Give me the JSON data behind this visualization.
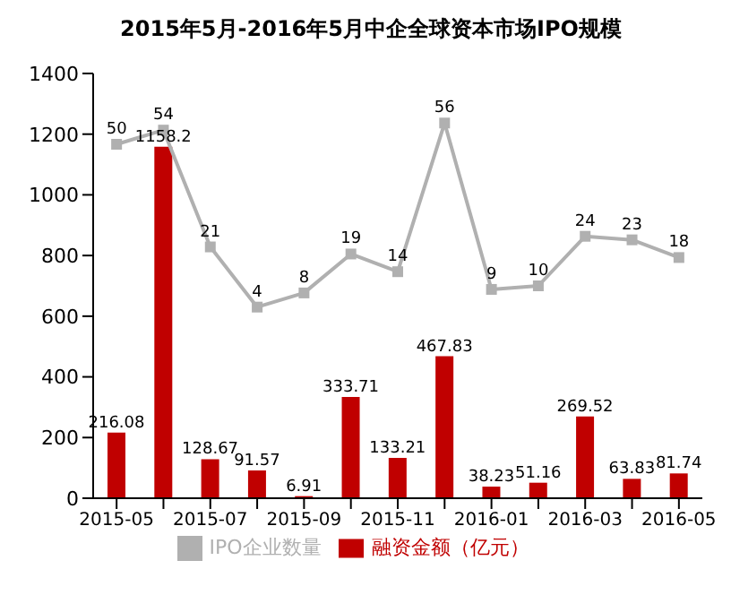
{
  "chart_data": {
    "type": "bar",
    "title": "2015年5月-2016年5月中企全球资本市场IPO规模",
    "categories": [
      "2015-05",
      null,
      "2015-07",
      null,
      "2015-09",
      null,
      "2015-11",
      null,
      "2016-01",
      null,
      "2016-03",
      null,
      "2016-05"
    ],
    "series": [
      {
        "name": "融资金额（亿元）",
        "color": "#c00000",
        "values": [
          216.08,
          1158.2,
          128.67,
          91.57,
          6.91,
          333.71,
          133.21,
          467.83,
          38.23,
          51.16,
          269.52,
          63.83,
          81.74
        ]
      },
      {
        "name": "IPO企业数量",
        "type": "line",
        "axis": "y2",
        "color": "#b0b0b0",
        "values": [
          50,
          54,
          21,
          4,
          8,
          19,
          14,
          56,
          9,
          10,
          24,
          23,
          18
        ]
      }
    ],
    "ylim": [
      0,
      1400
    ],
    "yticks": [
      0,
      200,
      400,
      600,
      800,
      1000,
      1200,
      1400
    ],
    "y2lim": [
      -50,
      70
    ],
    "data_labels": true,
    "legend": "bottom",
    "marker": "square",
    "grid": false
  }
}
